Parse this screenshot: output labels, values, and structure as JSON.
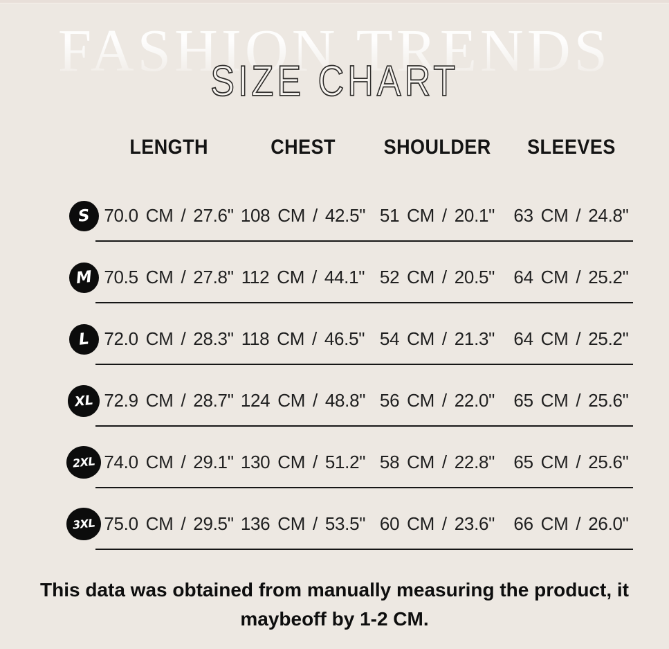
{
  "page": {
    "brand_watermark": "FASHION TRENDS",
    "title": "SIZE CHART"
  },
  "table": {
    "columns": [
      "LENGTH",
      "CHEST",
      "SHOULDER",
      "SLEEVES"
    ],
    "rows": [
      {
        "size": "S",
        "length": "70.0 CM / 27.6\"",
        "chest": "108 CM / 42.5\"",
        "shoulder": "51 CM / 20.1\"",
        "sleeves": "63 CM / 24.8\""
      },
      {
        "size": "M",
        "length": "70.5 CM / 27.8\"",
        "chest": "112 CM / 44.1\"",
        "shoulder": "52 CM / 20.5\"",
        "sleeves": "64 CM / 25.2\""
      },
      {
        "size": "L",
        "length": "72.0 CM / 28.3\"",
        "chest": "118 CM / 46.5\"",
        "shoulder": "54 CM / 21.3\"",
        "sleeves": "64 CM / 25.2\""
      },
      {
        "size": "XL",
        "length": "72.9 CM / 28.7\"",
        "chest": "124 CM / 48.8\"",
        "shoulder": "56 CM / 22.0\"",
        "sleeves": "65 CM / 25.6\""
      },
      {
        "size": "2XL",
        "length": "74.0 CM / 29.1\"",
        "chest": "130 CM / 51.2\"",
        "shoulder": "58 CM / 22.8\"",
        "sleeves": "65 CM / 25.6\""
      },
      {
        "size": "3XL",
        "length": "75.0 CM / 29.5\"",
        "chest": "136 CM / 53.5\"",
        "shoulder": "60 CM / 23.6\"",
        "sleeves": "66 CM / 26.0\""
      }
    ]
  },
  "footer": {
    "line1": "This data was obtained from manually measuring the product, it",
    "line2": "maybeoff by 1-2 CM."
  },
  "colors": {
    "background": "#ede8e2",
    "badge": "#0c0c0c",
    "text": "#1f1f1f",
    "title_fill": "#f7f4f0",
    "title_stroke": "#2e2c2a"
  }
}
